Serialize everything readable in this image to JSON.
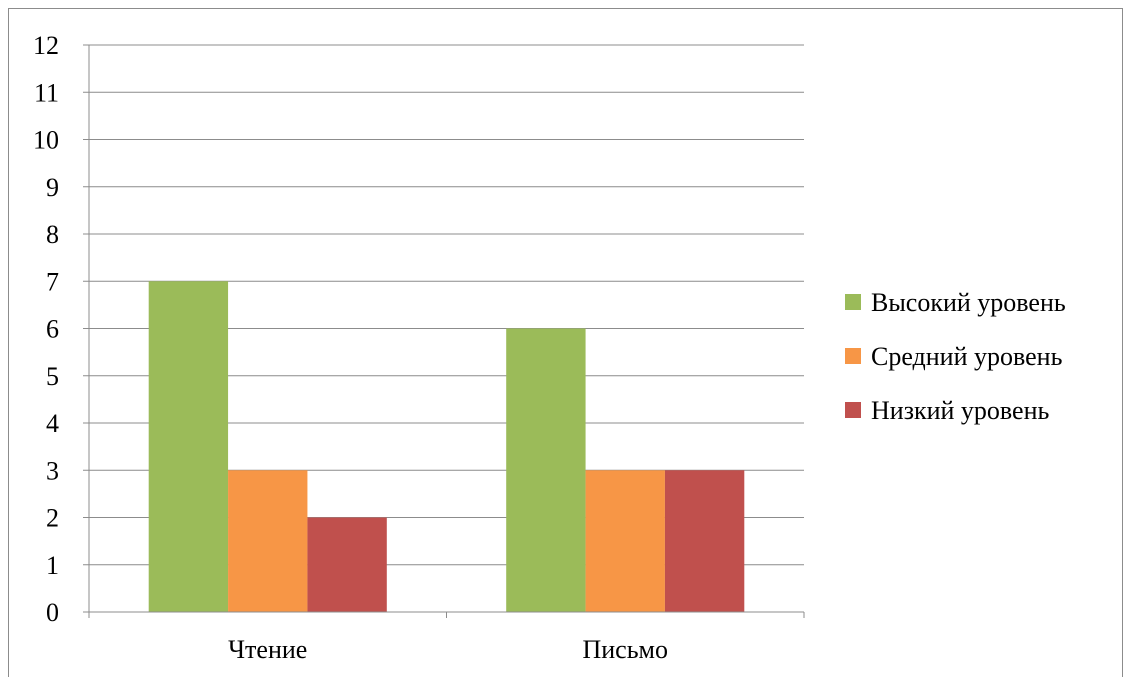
{
  "chart_data": {
    "type": "bar",
    "title": "",
    "xlabel": "",
    "ylabel": "",
    "categories": [
      "Чтение",
      "Письмо"
    ],
    "series": [
      {
        "name": "Высокий уровень",
        "values": [
          7,
          6
        ],
        "color": "#9BBB59"
      },
      {
        "name": "Средний уровень",
        "values": [
          3,
          3
        ],
        "color": "#F79646"
      },
      {
        "name": "Низкий уровень",
        "values": [
          2,
          3
        ],
        "color": "#C0504D"
      }
    ],
    "ylim": [
      0,
      12
    ],
    "yticks": [
      "0",
      "1",
      "2",
      "3",
      "4",
      "5",
      "6",
      "7",
      "8",
      "9",
      "10",
      "11",
      "12"
    ],
    "grid": true,
    "legend_position": "right"
  }
}
